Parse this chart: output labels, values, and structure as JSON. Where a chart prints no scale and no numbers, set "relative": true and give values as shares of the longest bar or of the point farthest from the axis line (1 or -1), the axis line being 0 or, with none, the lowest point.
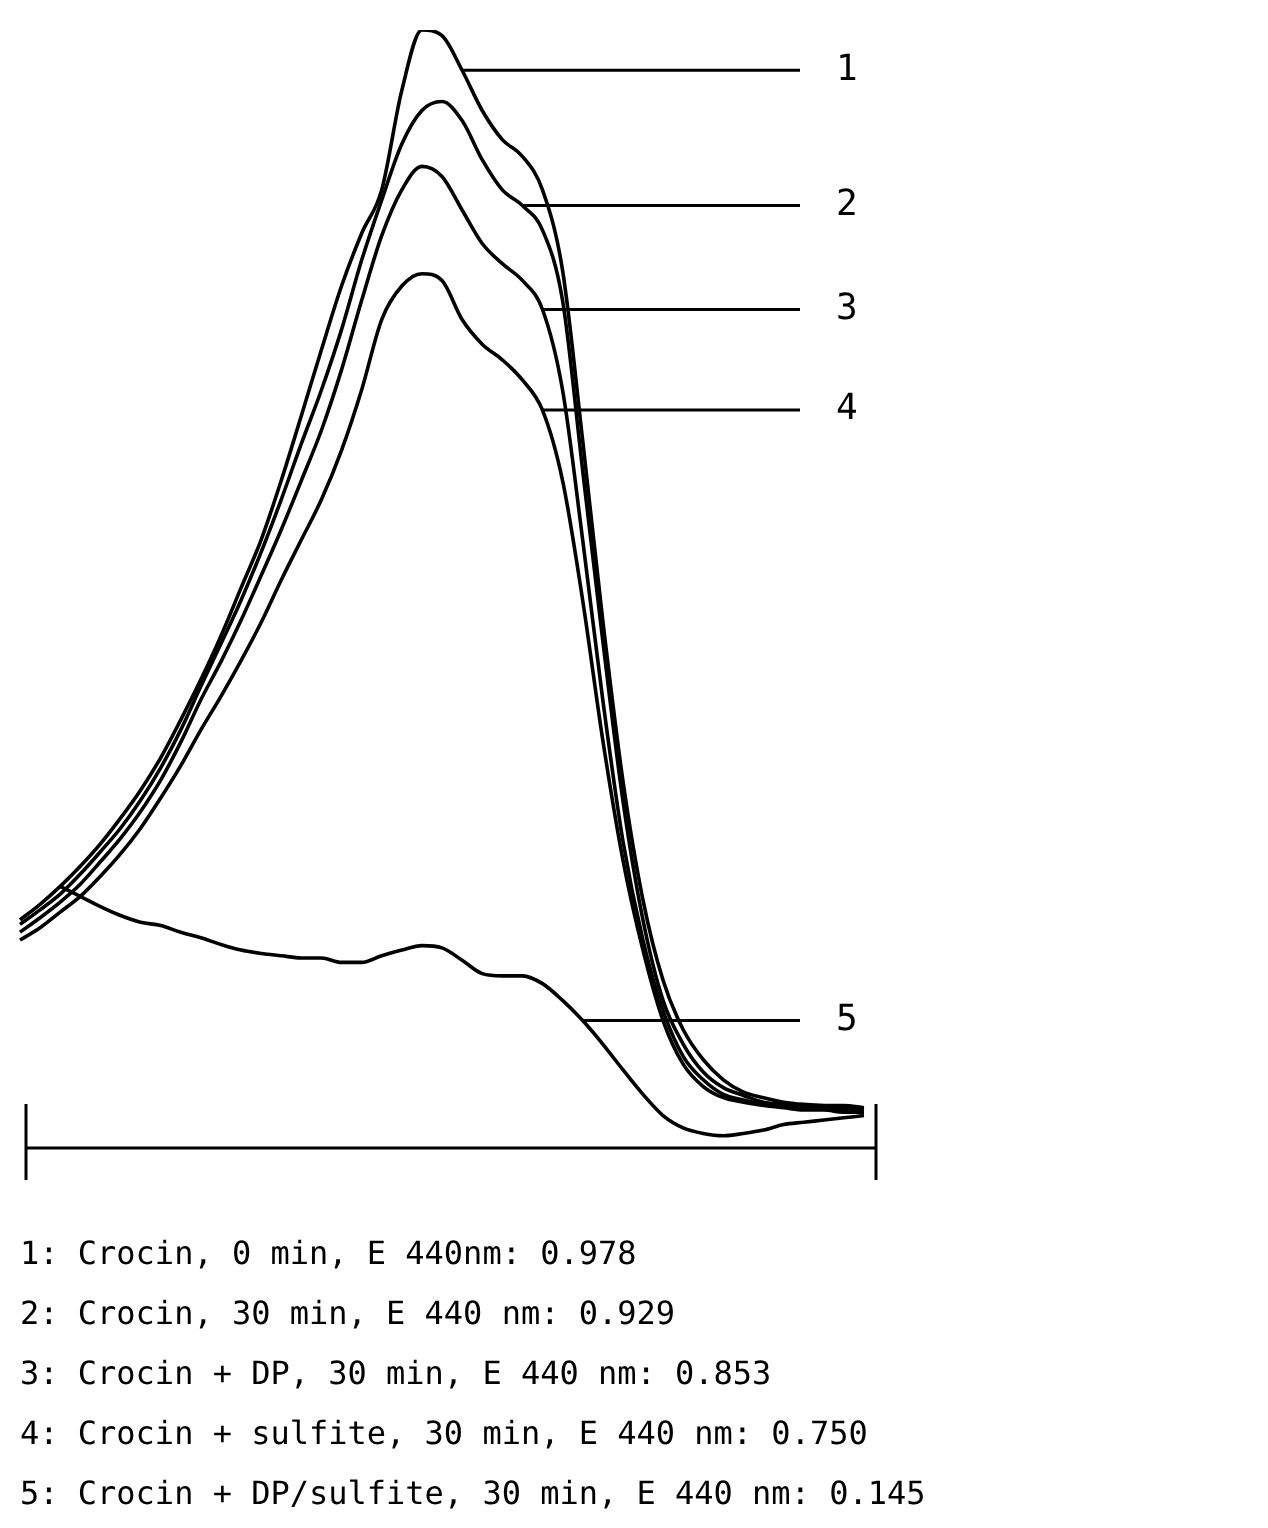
{
  "chart_data": {
    "type": "line",
    "relative": true,
    "legend": false,
    "marker": "none",
    "line_style": "solid",
    "categories": [
      null,
      null,
      null,
      null,
      null,
      null,
      null,
      null,
      null,
      null,
      null,
      null,
      null,
      null,
      null,
      null,
      null,
      null,
      null,
      null,
      null,
      null,
      null,
      null,
      null,
      null,
      null,
      null,
      null,
      null,
      null,
      null,
      null,
      null,
      null,
      null,
      null,
      null,
      null,
      null,
      null,
      null,
      null
    ],
    "series": [
      {
        "name": "1",
        "color": "#000000",
        "values": [
          0.204,
          0.218,
          0.234,
          0.252,
          0.272,
          0.295,
          0.32,
          0.349,
          0.383,
          0.419,
          0.458,
          0.501,
          0.544,
          0.597,
          0.655,
          0.714,
          0.771,
          0.818,
          0.857,
          0.946,
          1,
          0.995,
          0.964,
          0.928,
          0.902,
          0.887,
          0.857,
          0.785,
          0.633,
          0.472,
          0.329,
          0.222,
          0.15,
          0.106,
          0.079,
          0.061,
          0.05,
          0.045,
          0.041,
          0.039,
          0.038,
          0.038,
          0.036
        ]
      },
      {
        "name": "2",
        "color": "#000000",
        "values": [
          0.2,
          0.213,
          0.227,
          0.245,
          0.265,
          0.286,
          0.311,
          0.34,
          0.374,
          0.413,
          0.451,
          0.49,
          0.533,
          0.58,
          0.63,
          0.678,
          0.732,
          0.794,
          0.848,
          0.898,
          0.928,
          0.936,
          0.919,
          0.884,
          0.857,
          0.843,
          0.821,
          0.758,
          0.606,
          0.454,
          0.311,
          0.204,
          0.132,
          0.093,
          0.068,
          0.054,
          0.047,
          0.041,
          0.039,
          0.038,
          0.036,
          0.036,
          0.034
        ]
      },
      {
        "name": "3",
        "color": "#000000",
        "values": [
          0.193,
          0.206,
          0.22,
          0.236,
          0.256,
          0.277,
          0.301,
          0.329,
          0.363,
          0.401,
          0.435,
          0.472,
          0.512,
          0.553,
          0.597,
          0.642,
          0.696,
          0.758,
          0.816,
          0.857,
          0.878,
          0.869,
          0.839,
          0.809,
          0.791,
          0.776,
          0.75,
          0.678,
          0.544,
          0.401,
          0.275,
          0.186,
          0.123,
          0.082,
          0.061,
          0.048,
          0.043,
          0.039,
          0.038,
          0.036,
          0.036,
          0.034,
          0.034
        ]
      },
      {
        "name": "4",
        "color": "#000000",
        "values": [
          0.186,
          0.197,
          0.211,
          0.225,
          0.243,
          0.263,
          0.286,
          0.313,
          0.342,
          0.374,
          0.404,
          0.436,
          0.47,
          0.508,
          0.544,
          0.58,
          0.624,
          0.678,
          0.741,
          0.771,
          0.782,
          0.776,
          0.741,
          0.719,
          0.705,
          0.687,
          0.66,
          0.597,
          0.49,
          0.365,
          0.258,
          0.177,
          0.114,
          0.075,
          0.055,
          0.045,
          0.041,
          0.038,
          0.036,
          0.034,
          0.034,
          0.032,
          0.032
        ]
      },
      {
        "name": "5",
        "color": "#000000",
        "values": [
          null,
          null,
          0.234,
          0.225,
          0.216,
          0.208,
          0.202,
          0.199,
          0.193,
          0.188,
          0.182,
          0.177,
          0.174,
          0.172,
          0.17,
          0.17,
          0.166,
          0.166,
          0.172,
          0.177,
          0.181,
          0.179,
          0.168,
          0.156,
          0.154,
          0.154,
          0.147,
          0.132,
          0.114,
          0.093,
          0.07,
          0.048,
          0.029,
          0.018,
          0.013,
          0.011,
          0.013,
          0.016,
          0.021,
          0.023,
          0.025,
          0.027,
          0.029
        ]
      }
    ],
    "annotations": [
      "1: Crocin, 0 min, E 440nm: 0.978",
      "2: Crocin, 30 min, E 440 nm: 0.929",
      "3: Crocin + DP, 30 min, E 440 nm: 0.853",
      "4: Crocin + sulfite, 30 min, E 440 nm: 0.750",
      "5: Crocin + DP/sulfite, 30 min, E 440 nm: 0.145"
    ]
  }
}
